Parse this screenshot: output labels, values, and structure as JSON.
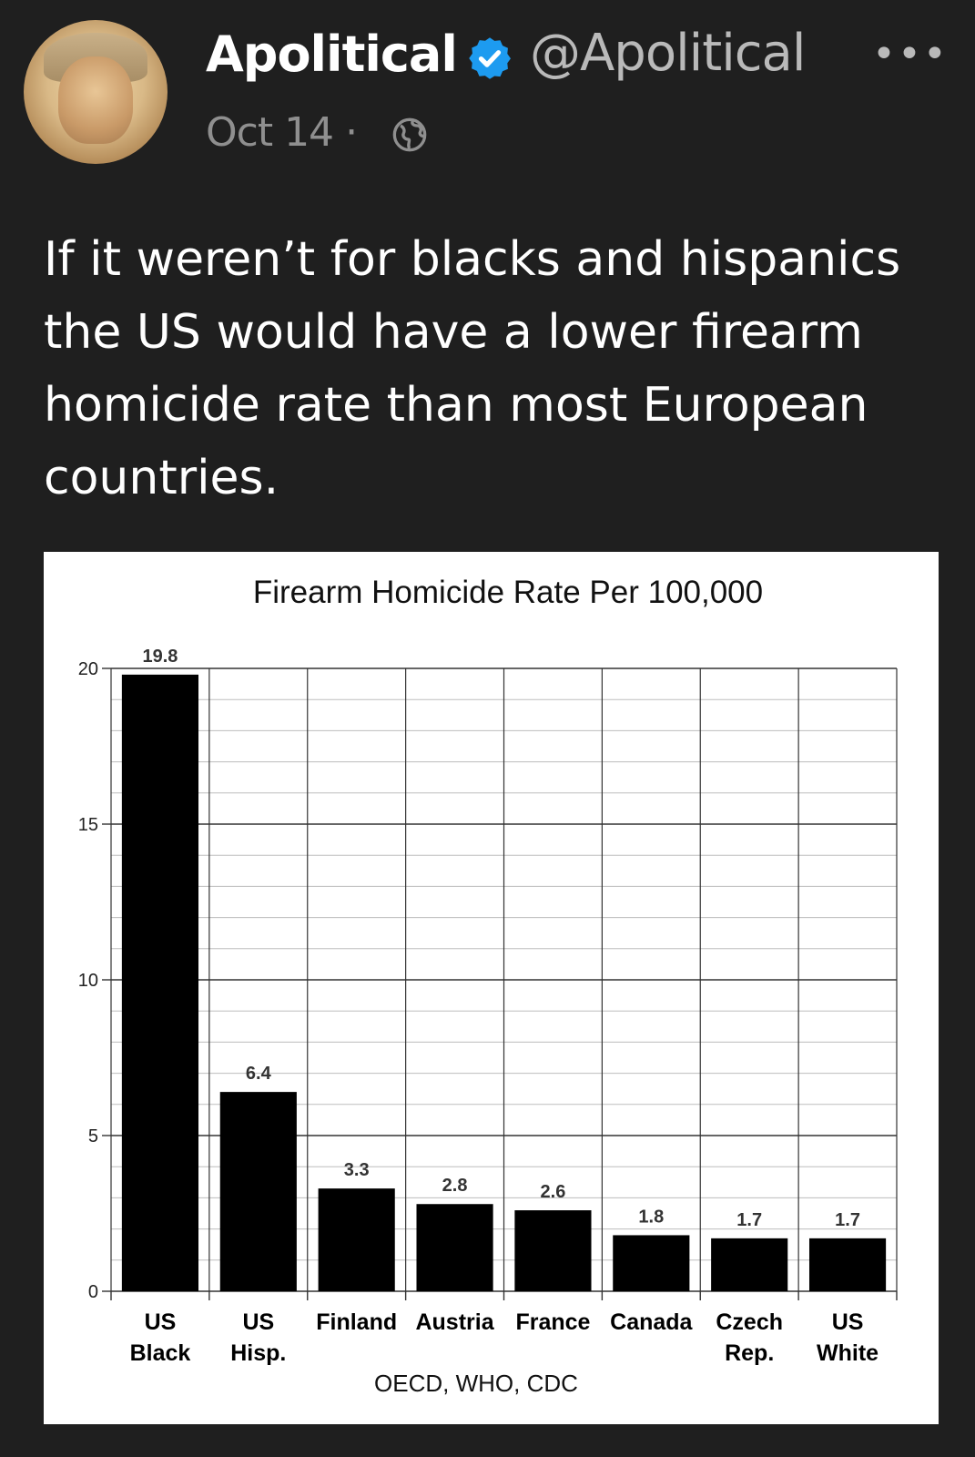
{
  "tweet": {
    "display_name": "Apolitical",
    "handle": "@Apolitical",
    "date": "Oct 14",
    "separator": "·",
    "more_label": "•••",
    "verified_icon": "verified-badge-icon",
    "visibility_icon": "globe-icon",
    "accent_color": "#1d9bf0",
    "text": "If it weren’t for blacks and hispanics the US would have a lower firearm homicide rate than most European countries."
  },
  "chart_data": {
    "type": "bar",
    "title": "Firearm Homicide Rate Per 100,000",
    "source": "OECD, WHO, CDC",
    "categories": [
      [
        "US",
        "Black"
      ],
      [
        "US",
        "Hisp."
      ],
      [
        "Finland"
      ],
      [
        "Austria"
      ],
      [
        "France"
      ],
      [
        "Canada"
      ],
      [
        "Czech",
        "Rep."
      ],
      [
        "US",
        "White"
      ]
    ],
    "values": [
      19.8,
      6.4,
      3.3,
      2.8,
      2.6,
      1.8,
      1.7,
      1.7
    ],
    "value_labels": [
      "19.8",
      "6.4",
      "3.3",
      "2.8",
      "2.6",
      "1.8",
      "1.7",
      "1.7"
    ],
    "ylim": [
      0,
      20
    ],
    "yticks": [
      0,
      5,
      10,
      15,
      20
    ],
    "grid": true,
    "bar_color": "#000000",
    "xlabel": "",
    "ylabel": ""
  }
}
